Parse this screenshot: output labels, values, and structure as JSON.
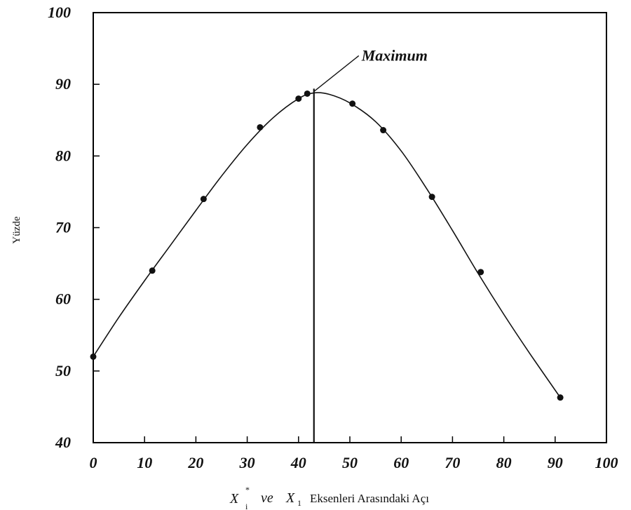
{
  "chart_data": {
    "type": "scatter",
    "ylabel": "Yüzde",
    "xlabel": {
      "var1": "X",
      "var1_sup": "*",
      "var1_sub": "i",
      "connector": "ve",
      "var2": "X",
      "var2_sub": "1",
      "text": "Eksenleri Arasındaki Açı"
    },
    "xlim": [
      0,
      100
    ],
    "ylim": [
      40,
      100
    ],
    "xticks": [
      "0",
      "10",
      "20",
      "30",
      "40",
      "50",
      "60",
      "70",
      "80",
      "90",
      "100"
    ],
    "yticks": [
      "40",
      "50",
      "60",
      "70",
      "80",
      "90",
      "100"
    ],
    "grid": false,
    "series": [
      {
        "points": [
          {
            "x": 0,
            "y": 52
          },
          {
            "x": 11.5,
            "y": 64
          },
          {
            "x": 21.5,
            "y": 74
          },
          {
            "x": 32.5,
            "y": 84
          },
          {
            "x": 40,
            "y": 88
          },
          {
            "x": 41.7,
            "y": 88.7
          },
          {
            "x": 50.5,
            "y": 87.3
          },
          {
            "x": 56.5,
            "y": 83.6
          },
          {
            "x": 66,
            "y": 74.3
          },
          {
            "x": 75.5,
            "y": 63.8
          },
          {
            "x": 91,
            "y": 46.3
          }
        ]
      }
    ],
    "curve": [
      {
        "x": 0,
        "y": 52
      },
      {
        "x": 5,
        "y": 57.5
      },
      {
        "x": 10,
        "y": 62.6
      },
      {
        "x": 15,
        "y": 67.5
      },
      {
        "x": 20,
        "y": 72.4
      },
      {
        "x": 25,
        "y": 77.2
      },
      {
        "x": 30,
        "y": 81.6
      },
      {
        "x": 35,
        "y": 85.3
      },
      {
        "x": 40,
        "y": 88
      },
      {
        "x": 43,
        "y": 88.8
      },
      {
        "x": 46,
        "y": 88.6
      },
      {
        "x": 50,
        "y": 87.4
      },
      {
        "x": 55,
        "y": 84.8
      },
      {
        "x": 60,
        "y": 80.7
      },
      {
        "x": 65,
        "y": 75.4
      },
      {
        "x": 70,
        "y": 69.6
      },
      {
        "x": 75,
        "y": 63.6
      },
      {
        "x": 80,
        "y": 57.9
      },
      {
        "x": 85,
        "y": 52.5
      },
      {
        "x": 91,
        "y": 46.3
      }
    ],
    "annotations": [
      {
        "text": "Maximum",
        "x": 43,
        "y": 88.8
      }
    ],
    "max_line_x": 43
  }
}
